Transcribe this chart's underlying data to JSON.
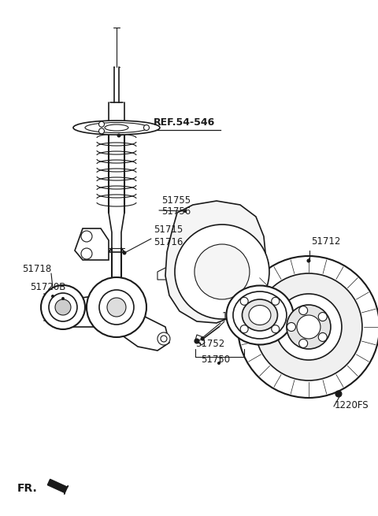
{
  "bg_color": "#ffffff",
  "line_color": "#1a1a1a",
  "figsize": [
    4.8,
    6.55
  ],
  "dpi": 100,
  "xlim": [
    0,
    480
  ],
  "ylim": [
    0,
    655
  ]
}
